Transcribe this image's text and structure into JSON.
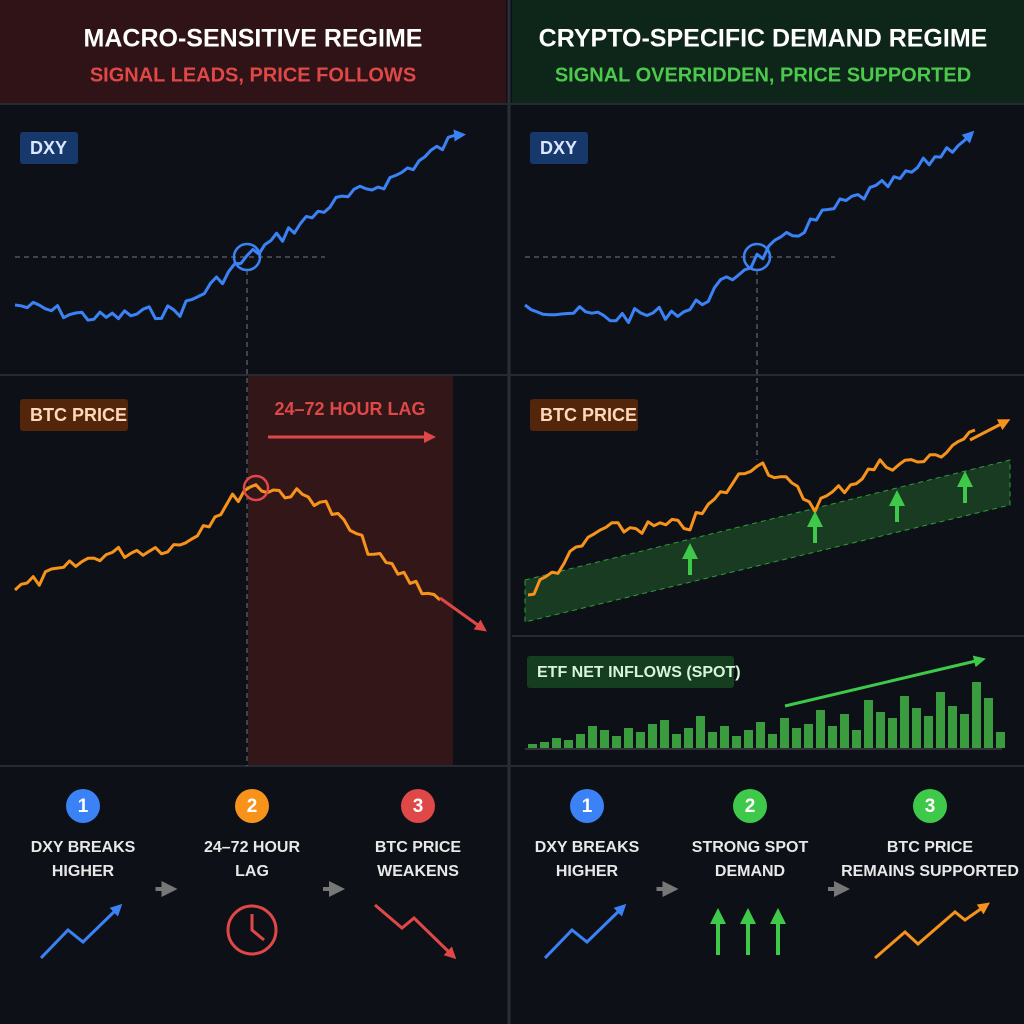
{
  "panels": [
    {
      "title": "MACRO-SENSITIVE REGIME",
      "subtitle": "SIGNAL LEADS, PRICE FOLLOWS",
      "dxy_label": "DXY",
      "btc_label": "BTC PRICE",
      "lag_label": "24–72 HOUR LAG",
      "steps": [
        {
          "number": 1,
          "lines": [
            "DXY BREAKS",
            "HIGHER"
          ]
        },
        {
          "number": 2,
          "lines": [
            "24–72 HOUR",
            "LAG"
          ]
        },
        {
          "number": 3,
          "lines": [
            "BTC PRICE",
            "WEAKENS"
          ]
        }
      ]
    },
    {
      "title": "CRYPTO-SPECIFIC DEMAND REGIME",
      "subtitle": "SIGNAL OVERRIDDEN, PRICE SUPPORTED",
      "dxy_label": "DXY",
      "btc_label": "BTC PRICE",
      "etf_label": "ETF NET INFLOWS (SPOT)",
      "steps": [
        {
          "number": 1,
          "lines": [
            "DXY BREAKS",
            "HIGHER"
          ]
        },
        {
          "number": 2,
          "lines": [
            "STRONG SPOT",
            "DEMAND"
          ]
        },
        {
          "number": 3,
          "lines": [
            "BTC PRICE",
            "REMAINS SUPPORTED"
          ]
        }
      ]
    }
  ]
}
